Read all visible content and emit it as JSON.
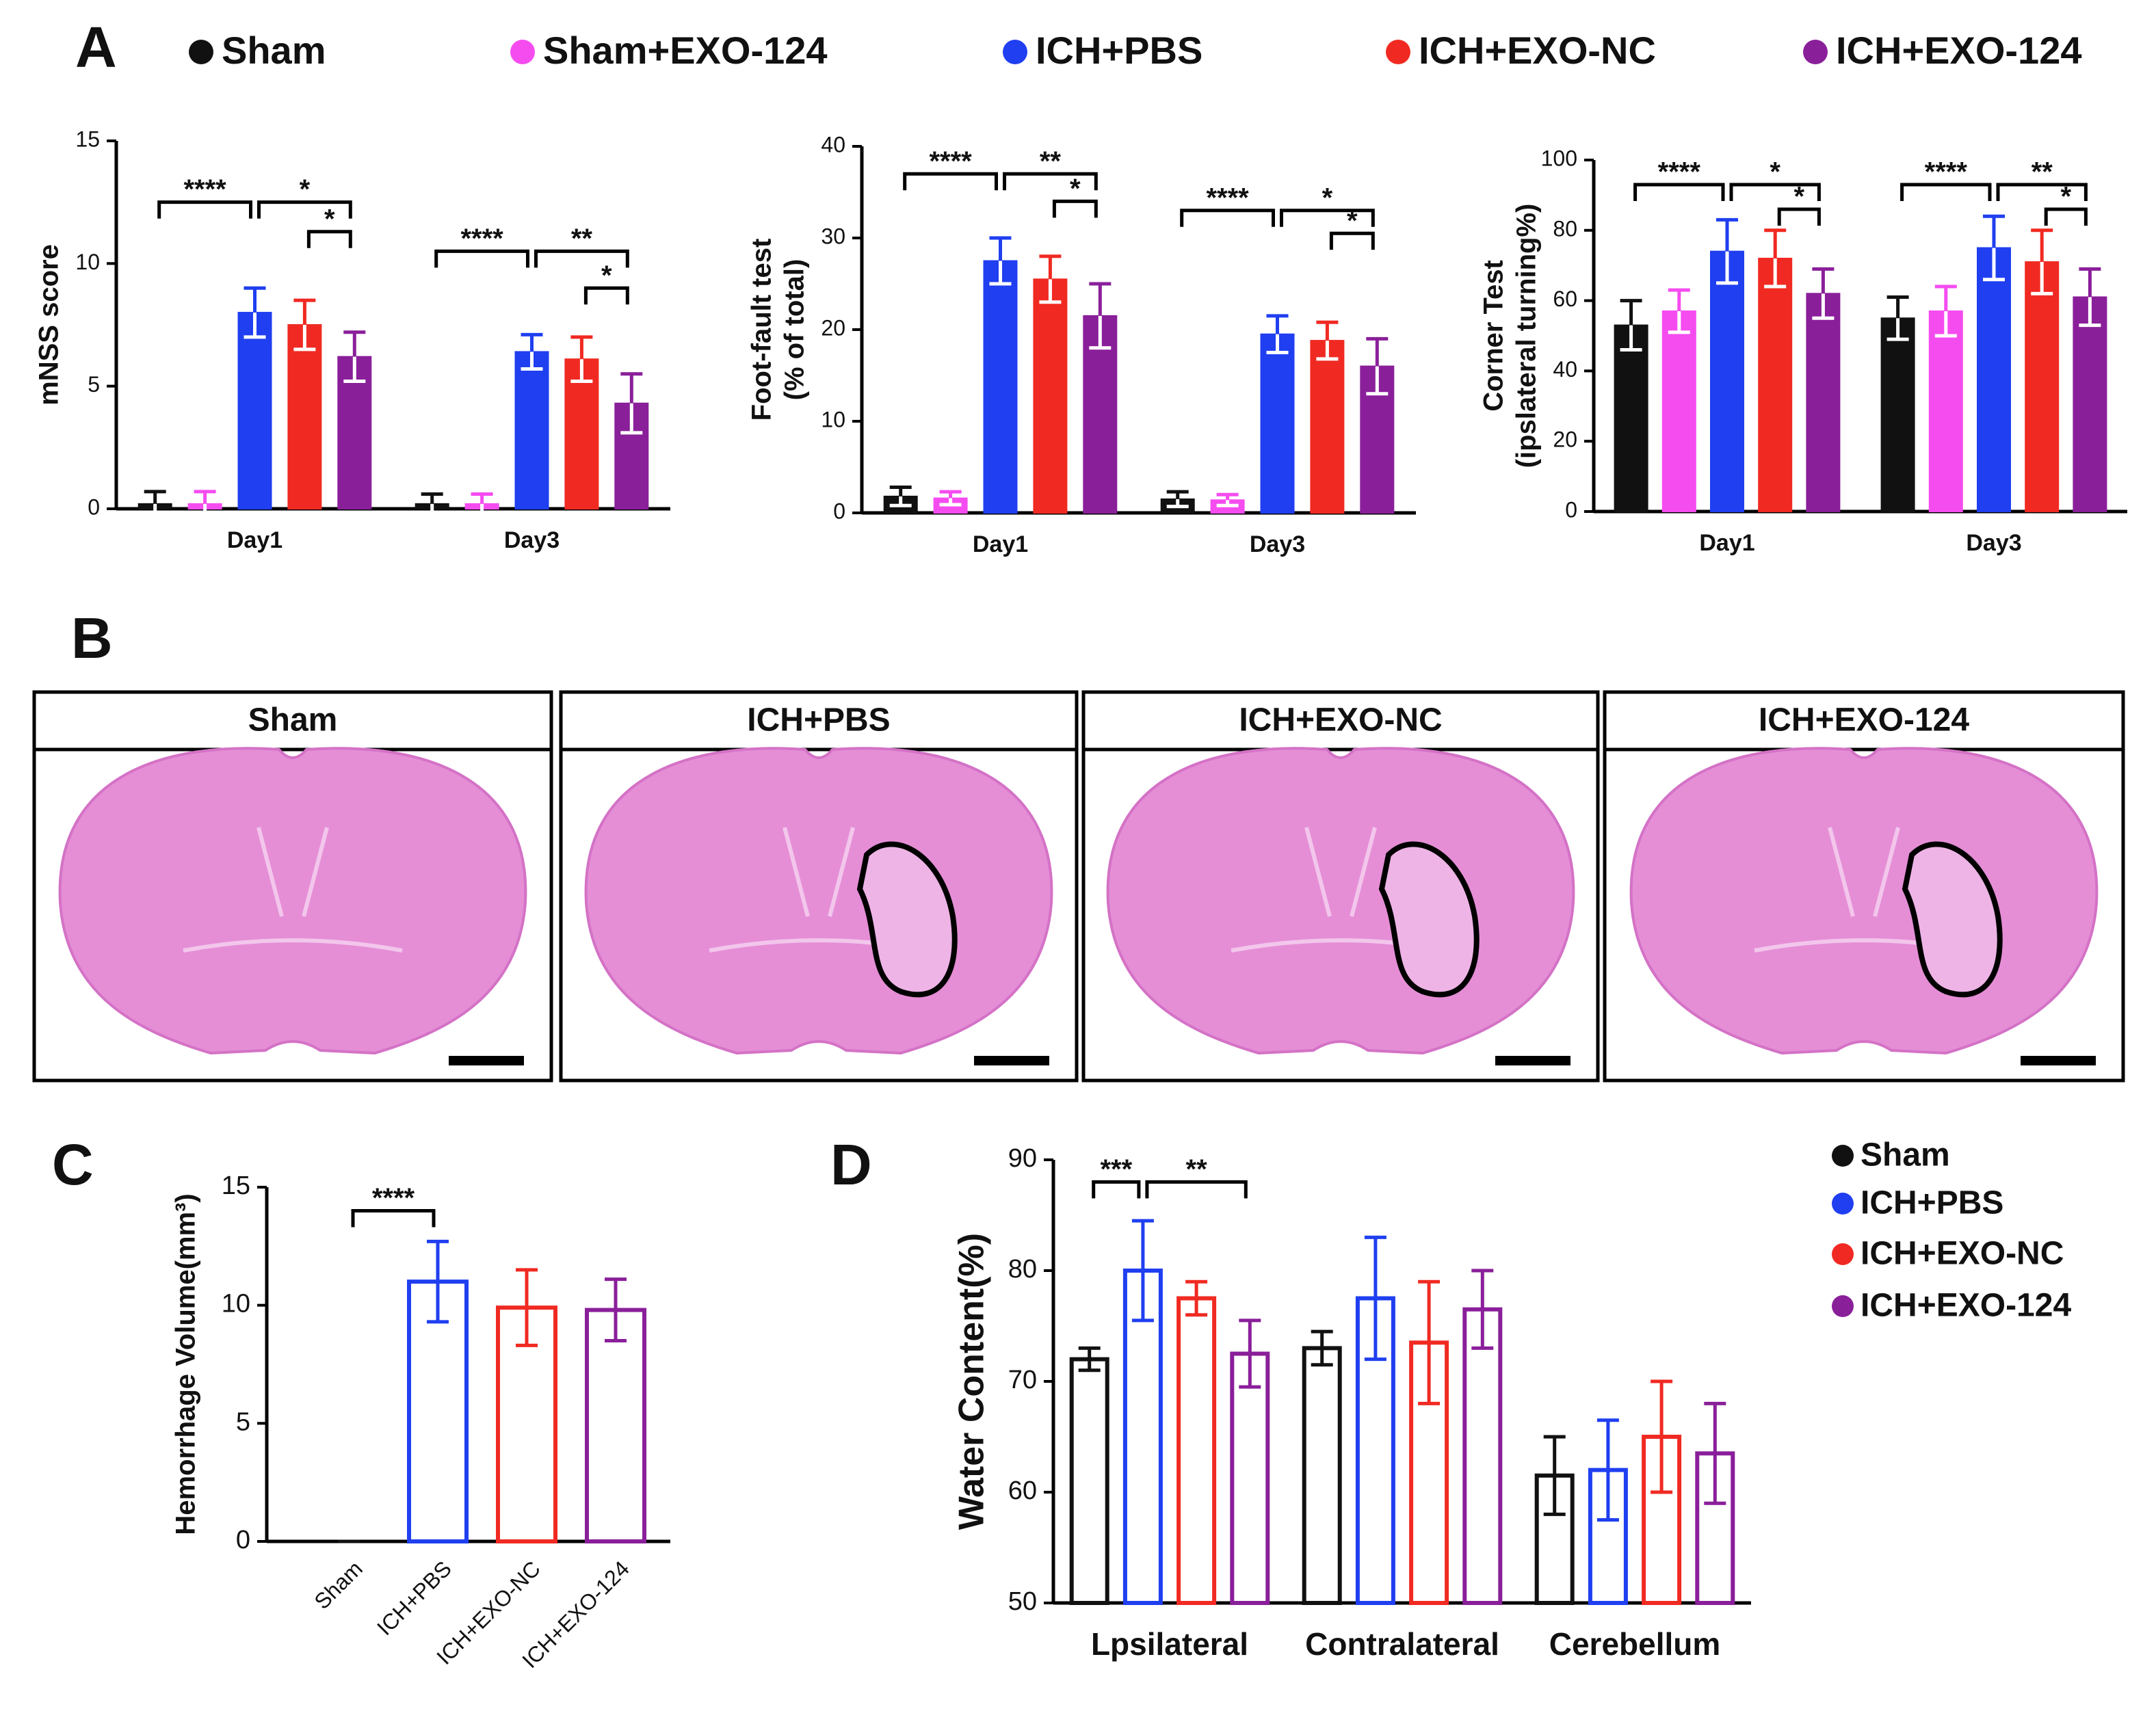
{
  "panel_labels": [
    "A",
    "B",
    "C",
    "D"
  ],
  "histology": {
    "panel_titles": [
      "Sham",
      "ICH+PBS",
      "ICH+EXO-NC",
      "ICH+EXO-124"
    ]
  },
  "chart_data": [
    {
      "type": "bar",
      "ylabel": [
        "mNSS score"
      ],
      "categories": [
        "Day1",
        "Day3"
      ],
      "fill": true,
      "ylim": [
        0,
        15
      ],
      "yticks": [
        0,
        5,
        10,
        15
      ],
      "series": [
        {
          "name": "Sham",
          "color": "#111111",
          "values": [
            0.2,
            0.2
          ],
          "errors": [
            0.5,
            0.4
          ]
        },
        {
          "name": "Sham+EXO-124",
          "color": "#f54cf0",
          "values": [
            0.2,
            0.2
          ],
          "errors": [
            0.5,
            0.4
          ]
        },
        {
          "name": "ICH+PBS",
          "color": "#1f3ff0",
          "values": [
            8,
            6.4
          ],
          "errors": [
            1,
            0.7
          ]
        },
        {
          "name": "ICH+EXO-NC",
          "color": "#f02a22",
          "values": [
            7.5,
            6.1
          ],
          "errors": [
            1,
            0.9
          ]
        },
        {
          "name": "ICH+EXO-124",
          "color": "#8a1f9a",
          "values": [
            6.2,
            4.3
          ],
          "errors": [
            1,
            1.2
          ]
        }
      ],
      "annotations": [
        "****",
        "*",
        "*",
        "****",
        "**",
        "*"
      ]
    },
    {
      "type": "bar",
      "ylabel": [
        "Foot-fault test",
        "(% of total)"
      ],
      "categories": [
        "Day1",
        "Day3"
      ],
      "fill": true,
      "ylim": [
        0,
        40
      ],
      "yticks": [
        0,
        10,
        20,
        30,
        40
      ],
      "series": [
        {
          "name": "Sham",
          "color": "#111111",
          "values": [
            1.8,
            1.5
          ],
          "errors": [
            1,
            0.8
          ]
        },
        {
          "name": "Sham+EXO-124",
          "color": "#f54cf0",
          "values": [
            1.6,
            1.4
          ],
          "errors": [
            0.7,
            0.6
          ]
        },
        {
          "name": "ICH+PBS",
          "color": "#1f3ff0",
          "values": [
            27.5,
            19.5
          ],
          "errors": [
            2.5,
            2
          ]
        },
        {
          "name": "ICH+EXO-NC",
          "color": "#f02a22",
          "values": [
            25.5,
            18.8
          ],
          "errors": [
            2.5,
            2
          ]
        },
        {
          "name": "ICH+EXO-124",
          "color": "#8a1f9a",
          "values": [
            21.5,
            16
          ],
          "errors": [
            3.5,
            3
          ]
        }
      ],
      "annotations": [
        "****",
        "**",
        "*",
        "****",
        "*",
        "*"
      ]
    },
    {
      "type": "bar",
      "ylabel": [
        "Corner Test",
        "(ipslateral turning%)"
      ],
      "categories": [
        "Day1",
        "Day3"
      ],
      "fill": true,
      "ylim": [
        0,
        100
      ],
      "yticks": [
        0,
        20,
        40,
        60,
        80,
        100
      ],
      "series": [
        {
          "name": "Sham",
          "color": "#111111",
          "values": [
            53,
            55
          ],
          "errors": [
            7,
            6
          ]
        },
        {
          "name": "Sham+EXO-124",
          "color": "#f54cf0",
          "values": [
            57,
            57
          ],
          "errors": [
            6,
            7
          ]
        },
        {
          "name": "ICH+PBS",
          "color": "#1f3ff0",
          "values": [
            74,
            75
          ],
          "errors": [
            9,
            9
          ]
        },
        {
          "name": "ICH+EXO-NC",
          "color": "#f02a22",
          "values": [
            72,
            71
          ],
          "errors": [
            8,
            9
          ]
        },
        {
          "name": "ICH+EXO-124",
          "color": "#8a1f9a",
          "values": [
            62,
            61
          ],
          "errors": [
            7,
            8
          ]
        }
      ],
      "annotations": [
        "****",
        "*",
        "*",
        "****",
        "**",
        "*"
      ]
    },
    {
      "type": "bar",
      "ylabel": [
        "Hemorrhage Volume(mm³)"
      ],
      "fill": false,
      "categories": [
        "Sham",
        "ICH+PBS",
        "ICH+EXO-NC",
        "ICH+EXO-124"
      ],
      "values": [
        0,
        11,
        9.9,
        9.8
      ],
      "errors": [
        0,
        1.7,
        1.6,
        1.3
      ],
      "colors": [
        "#111111",
        "#1f3ff0",
        "#f02a22",
        "#8a1f9a"
      ],
      "ylim": [
        0,
        15
      ],
      "yticks": [
        0,
        5,
        10,
        15
      ],
      "annotations": [
        "****"
      ]
    },
    {
      "type": "bar",
      "ylabel": [
        "Water Content(%)"
      ],
      "fill": false,
      "categories": [
        "Lpsilateral",
        "Contralateral",
        "Cerebellum"
      ],
      "ylim": [
        50,
        90
      ],
      "yticks": [
        50,
        60,
        70,
        80,
        90
      ],
      "series": [
        {
          "name": "Sham",
          "color": "#111111",
          "values": [
            72,
            73,
            61.5
          ],
          "errors": [
            1,
            1.5,
            3.5
          ]
        },
        {
          "name": "ICH+PBS",
          "color": "#1f3ff0",
          "values": [
            80,
            77.5,
            62
          ],
          "errors": [
            4.5,
            5.5,
            4.5
          ]
        },
        {
          "name": "ICH+EXO-NC",
          "color": "#f02a22",
          "values": [
            77.5,
            73.5,
            65
          ],
          "errors": [
            1.5,
            5.5,
            5
          ]
        },
        {
          "name": "ICH+EXO-124",
          "color": "#8a1f9a",
          "values": [
            72.5,
            76.5,
            63.5
          ],
          "errors": [
            3,
            3.5,
            4.5
          ]
        }
      ],
      "annotations": [
        "***",
        "**"
      ]
    }
  ]
}
